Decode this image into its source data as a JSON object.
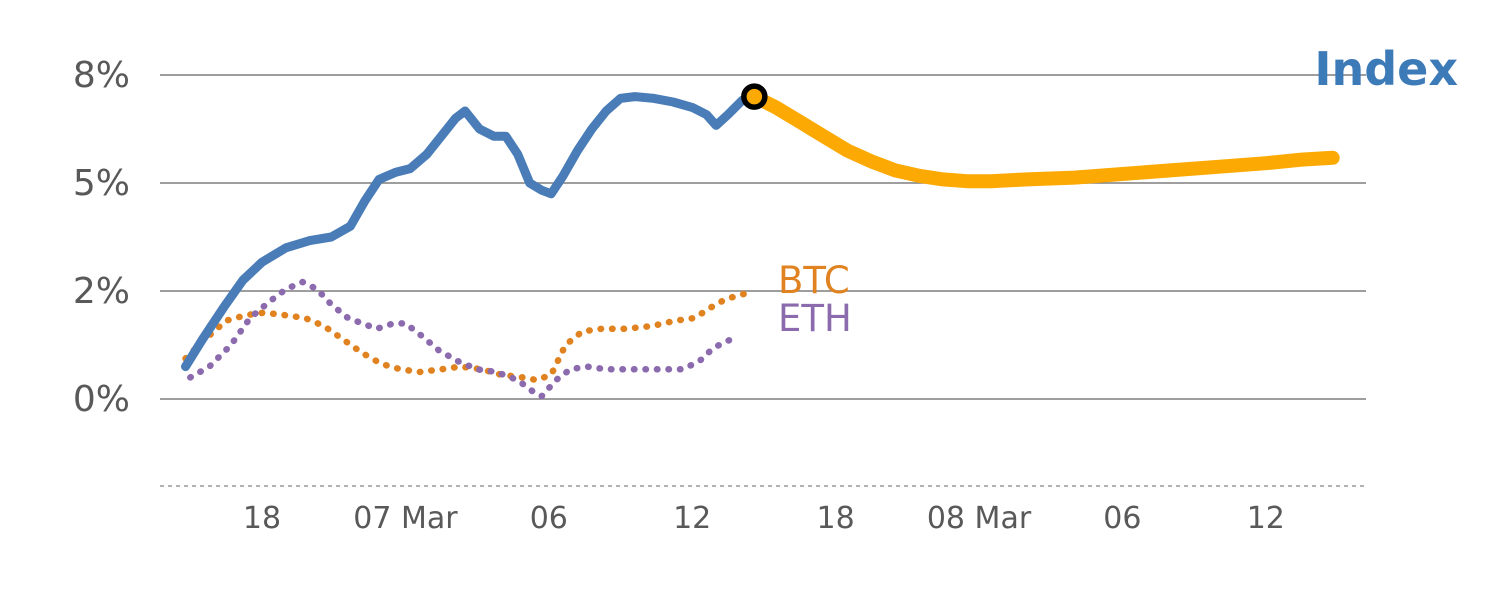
{
  "chart_data": {
    "type": "line",
    "title": "",
    "labels": {
      "index": "Index",
      "btc": "BTC",
      "eth": "ETH"
    },
    "colors": {
      "index_line": "#4a7db8",
      "index_text": "#3d7ab8",
      "forecast": "#fca903",
      "btc": "#e0821f",
      "eth": "#8b6bae",
      "grid": "#7f7f7f",
      "axis_dashed": "#9a9a9a",
      "tick_text": "#595959",
      "marker_ring": "#000000",
      "marker_fill": "#fca903"
    },
    "x_axis": {
      "unit": "hours (time axis, 6h ticks)",
      "range": [
        13.7,
        64.2
      ],
      "ticks": [
        {
          "t": 18,
          "label": "18"
        },
        {
          "t": 24,
          "label": "07 Mar"
        },
        {
          "t": 30,
          "label": "06"
        },
        {
          "t": 36,
          "label": "12"
        },
        {
          "t": 42,
          "label": "18"
        },
        {
          "t": 48,
          "label": "08 Mar"
        },
        {
          "t": 54,
          "label": "06"
        },
        {
          "t": 60,
          "label": "12"
        }
      ]
    },
    "y_axis": {
      "unit": "%",
      "ticks": [
        {
          "v": 8,
          "label": "8%"
        },
        {
          "v": 5,
          "label": "5%"
        },
        {
          "v": 2,
          "label": "2%"
        },
        {
          "v": 0,
          "label": "0%"
        }
      ]
    },
    "marker": {
      "t": 38.6,
      "v": 7.4
    },
    "series": [
      {
        "name": "BTC",
        "style": "dotted",
        "color": "#e0821f",
        "width": 6.5,
        "points": [
          [
            14.8,
            0.75
          ],
          [
            15.6,
            1.1
          ],
          [
            16.5,
            1.45
          ],
          [
            17.3,
            1.55
          ],
          [
            18.1,
            1.6
          ],
          [
            19.0,
            1.55
          ],
          [
            19.8,
            1.5
          ],
          [
            20.6,
            1.35
          ],
          [
            21.4,
            1.1
          ],
          [
            22.2,
            0.85
          ],
          [
            23.0,
            0.65
          ],
          [
            23.8,
            0.55
          ],
          [
            24.6,
            0.5
          ],
          [
            25.5,
            0.55
          ],
          [
            26.3,
            0.6
          ],
          [
            27.2,
            0.55
          ],
          [
            28.0,
            0.45
          ],
          [
            28.9,
            0.4
          ],
          [
            29.5,
            0.35
          ],
          [
            30.1,
            0.45
          ],
          [
            30.7,
            1.0
          ],
          [
            31.4,
            1.25
          ],
          [
            32.2,
            1.3
          ],
          [
            33.2,
            1.3
          ],
          [
            34.3,
            1.35
          ],
          [
            35.3,
            1.45
          ],
          [
            36.1,
            1.5
          ],
          [
            36.8,
            1.7
          ],
          [
            37.4,
            1.85
          ],
          [
            38.2,
            1.95
          ]
        ]
      },
      {
        "name": "ETH",
        "style": "dotted",
        "color": "#8b6bae",
        "width": 6.5,
        "points": [
          [
            15.0,
            0.4
          ],
          [
            15.8,
            0.6
          ],
          [
            16.7,
            1.0
          ],
          [
            17.5,
            1.5
          ],
          [
            18.3,
            1.8
          ],
          [
            19.0,
            2.05
          ],
          [
            19.7,
            2.25
          ],
          [
            20.3,
            2.05
          ],
          [
            20.9,
            1.75
          ],
          [
            21.6,
            1.5
          ],
          [
            22.2,
            1.4
          ],
          [
            22.8,
            1.3
          ],
          [
            23.5,
            1.4
          ],
          [
            24.0,
            1.4
          ],
          [
            24.6,
            1.2
          ],
          [
            25.4,
            0.9
          ],
          [
            26.2,
            0.7
          ],
          [
            27.0,
            0.55
          ],
          [
            27.8,
            0.5
          ],
          [
            28.7,
            0.35
          ],
          [
            29.3,
            0.15
          ],
          [
            29.7,
            0.05
          ],
          [
            30.3,
            0.35
          ],
          [
            30.9,
            0.55
          ],
          [
            31.6,
            0.6
          ],
          [
            32.4,
            0.55
          ],
          [
            33.4,
            0.55
          ],
          [
            34.5,
            0.55
          ],
          [
            35.6,
            0.55
          ],
          [
            36.3,
            0.7
          ],
          [
            36.9,
            0.95
          ],
          [
            37.6,
            1.1
          ]
        ]
      },
      {
        "name": "Index",
        "style": "solid",
        "color": "#4a7db8",
        "width": 9,
        "points": [
          [
            14.8,
            0.6
          ],
          [
            15.5,
            1.1
          ],
          [
            16.4,
            1.7
          ],
          [
            17.2,
            2.3
          ],
          [
            18.0,
            2.8
          ],
          [
            19.0,
            3.2
          ],
          [
            20.0,
            3.4
          ],
          [
            20.9,
            3.5
          ],
          [
            21.7,
            3.8
          ],
          [
            22.3,
            4.5
          ],
          [
            22.9,
            5.1
          ],
          [
            23.6,
            5.3
          ],
          [
            24.2,
            5.4
          ],
          [
            24.9,
            5.8
          ],
          [
            25.5,
            6.3
          ],
          [
            26.1,
            6.8
          ],
          [
            26.5,
            7.0
          ],
          [
            27.1,
            6.5
          ],
          [
            27.7,
            6.3
          ],
          [
            28.2,
            6.3
          ],
          [
            28.7,
            5.8
          ],
          [
            29.2,
            5.0
          ],
          [
            29.7,
            4.8
          ],
          [
            30.1,
            4.7
          ],
          [
            30.6,
            5.2
          ],
          [
            31.2,
            5.9
          ],
          [
            31.8,
            6.5
          ],
          [
            32.4,
            7.0
          ],
          [
            33.0,
            7.35
          ],
          [
            33.6,
            7.4
          ],
          [
            34.4,
            7.35
          ],
          [
            35.2,
            7.25
          ],
          [
            36.0,
            7.1
          ],
          [
            36.6,
            6.9
          ],
          [
            37.0,
            6.6
          ],
          [
            37.5,
            6.9
          ],
          [
            38.1,
            7.3
          ],
          [
            38.6,
            7.4
          ]
        ]
      },
      {
        "name": "Index forecast",
        "style": "solid",
        "color": "#fca903",
        "width": 14,
        "points": [
          [
            38.6,
            7.4
          ],
          [
            39.5,
            7.1
          ],
          [
            40.5,
            6.7
          ],
          [
            41.5,
            6.3
          ],
          [
            42.5,
            5.9
          ],
          [
            43.5,
            5.6
          ],
          [
            44.5,
            5.35
          ],
          [
            45.5,
            5.2
          ],
          [
            46.5,
            5.1
          ],
          [
            47.5,
            5.05
          ],
          [
            48.5,
            5.05
          ],
          [
            50.0,
            5.1
          ],
          [
            52.0,
            5.15
          ],
          [
            54.0,
            5.25
          ],
          [
            56.0,
            5.35
          ],
          [
            58.0,
            5.45
          ],
          [
            60.0,
            5.55
          ],
          [
            61.5,
            5.65
          ],
          [
            62.8,
            5.7
          ]
        ]
      }
    ]
  }
}
